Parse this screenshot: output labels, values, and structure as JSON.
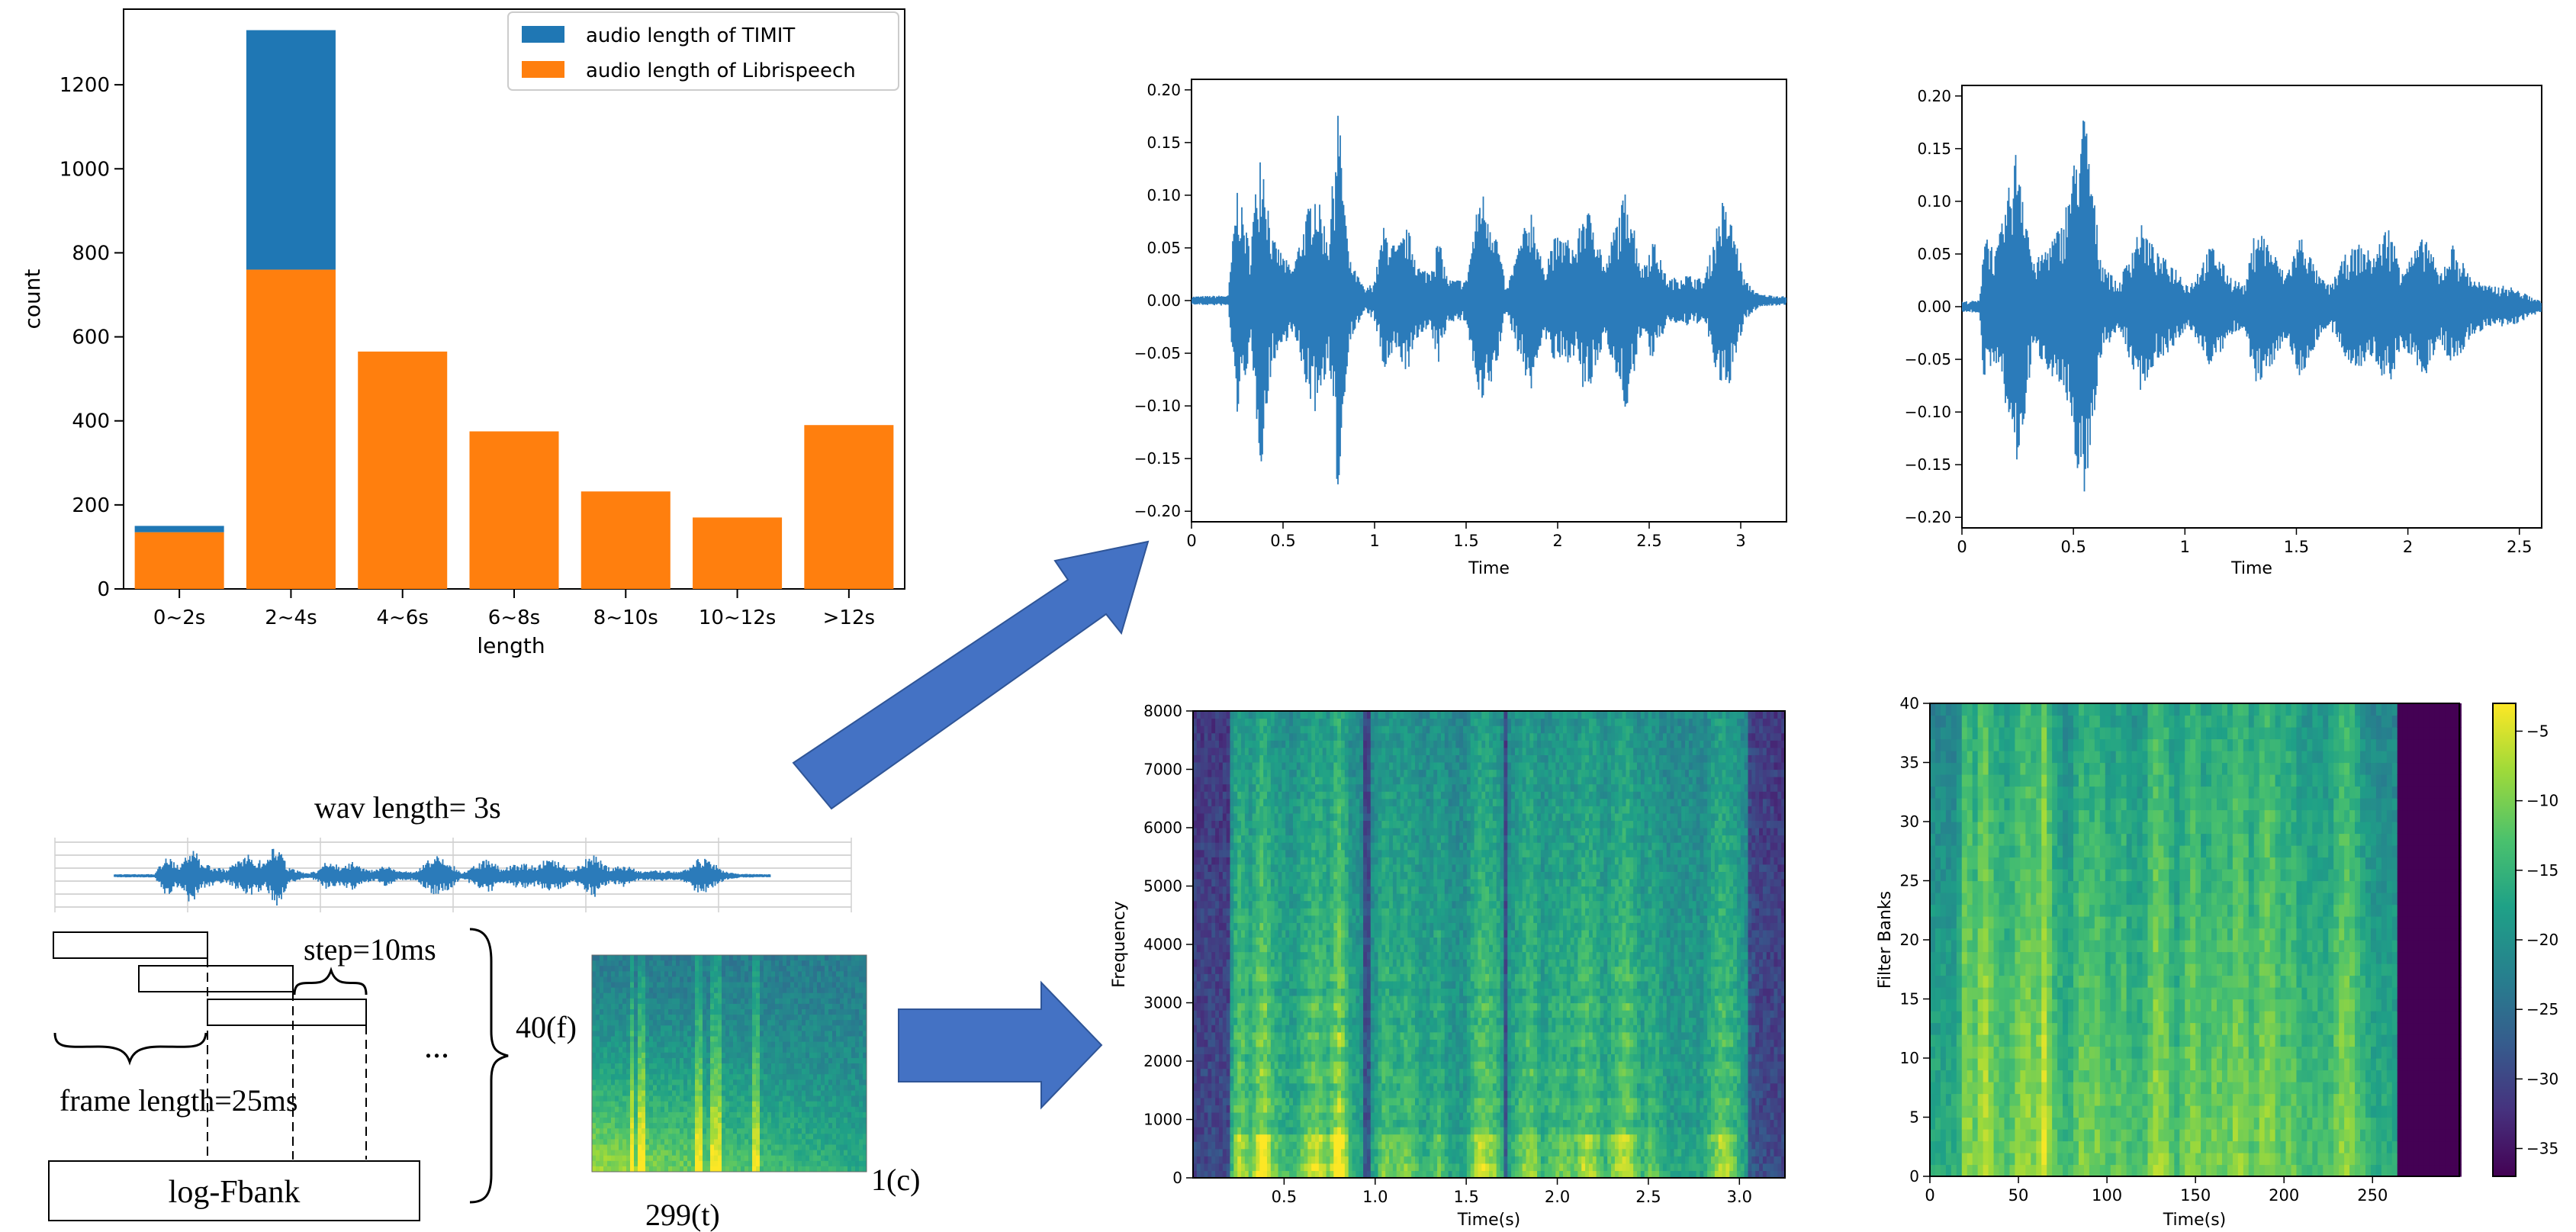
{
  "colors": {
    "timit": "#1f77b4",
    "librispeech": "#ff7f0e",
    "wave": "#2b7bba",
    "arrow": "#4472c4",
    "arrow_edge": "#2f5597"
  },
  "chart_data": [
    {
      "id": "histogram",
      "type": "bar",
      "stacked": true,
      "categories": [
        "0~2s",
        "2~4s",
        "4~6s",
        "6~8s",
        "8~10s",
        "10~12s",
        ">12s"
      ],
      "series": [
        {
          "name": "audio length of Librispeech",
          "values": [
            135,
            760,
            565,
            375,
            232,
            170,
            390
          ]
        },
        {
          "name": "audio length of TIMIT",
          "values": [
            15,
            570,
            0,
            0,
            0,
            0,
            0
          ]
        }
      ],
      "xlabel": "length",
      "ylabel": "count",
      "ylim": [
        0,
        1380
      ],
      "yticks": [
        0,
        200,
        400,
        600,
        800,
        1000,
        1200
      ],
      "legend": [
        "audio length of TIMIT",
        "audio length of Librispeech"
      ],
      "legend_position": "top-right"
    },
    {
      "id": "waveform-a",
      "type": "line",
      "xlabel": "Time",
      "xlim": [
        0,
        3.25
      ],
      "ylim": [
        -0.21,
        0.21
      ],
      "xticks": [
        0,
        0.5,
        1,
        1.5,
        2,
        2.5,
        3
      ],
      "xtick_labels": [
        "0",
        "0.5",
        "1",
        "1.5",
        "2",
        "2.5",
        "3"
      ],
      "yticks": [
        -0.2,
        -0.15,
        -0.1,
        -0.05,
        0,
        0.05,
        0.1,
        0.15,
        0.2
      ],
      "ytick_labels": [
        "−0.20",
        "−0.15",
        "−0.10",
        "−0.05",
        "0.00",
        "0.05",
        "0.10",
        "0.15",
        "0.20"
      ],
      "envelope": [
        [
          0,
          0.004
        ],
        [
          0.2,
          0.005
        ],
        [
          0.25,
          0.11
        ],
        [
          0.32,
          0.05
        ],
        [
          0.38,
          0.16
        ],
        [
          0.44,
          0.06
        ],
        [
          0.55,
          0.03
        ],
        [
          0.67,
          0.11
        ],
        [
          0.75,
          0.06
        ],
        [
          0.8,
          0.19
        ],
        [
          0.86,
          0.04
        ],
        [
          0.95,
          0.01
        ],
        [
          1.0,
          0.02
        ],
        [
          1.05,
          0.07
        ],
        [
          1.12,
          0.05
        ],
        [
          1.18,
          0.07
        ],
        [
          1.25,
          0.03
        ],
        [
          1.3,
          0.03
        ],
        [
          1.35,
          0.06
        ],
        [
          1.4,
          0.02
        ],
        [
          1.5,
          0.02
        ],
        [
          1.58,
          0.11
        ],
        [
          1.66,
          0.07
        ],
        [
          1.72,
          0.01
        ],
        [
          1.8,
          0.06
        ],
        [
          1.86,
          0.09
        ],
        [
          1.92,
          0.03
        ],
        [
          1.98,
          0.06
        ],
        [
          2.05,
          0.06
        ],
        [
          2.1,
          0.05
        ],
        [
          2.14,
          0.09
        ],
        [
          2.2,
          0.08
        ],
        [
          2.26,
          0.03
        ],
        [
          2.31,
          0.07
        ],
        [
          2.38,
          0.11
        ],
        [
          2.46,
          0.03
        ],
        [
          2.52,
          0.06
        ],
        [
          2.6,
          0.02
        ],
        [
          2.7,
          0.025
        ],
        [
          2.8,
          0.02
        ],
        [
          2.9,
          0.095
        ],
        [
          2.96,
          0.07
        ],
        [
          3.02,
          0.02
        ],
        [
          3.1,
          0.006
        ],
        [
          3.25,
          0.004
        ]
      ]
    },
    {
      "id": "waveform-b",
      "type": "line",
      "xlabel": "Time",
      "xlim": [
        0,
        2.6
      ],
      "ylim": [
        -0.21,
        0.21
      ],
      "xticks": [
        0,
        0.5,
        1,
        1.5,
        2,
        2.5
      ],
      "xtick_labels": [
        "0",
        "0.5",
        "1",
        "1.5",
        "2",
        "2.5"
      ],
      "yticks": [
        -0.2,
        -0.15,
        -0.1,
        -0.05,
        0,
        0.05,
        0.1,
        0.15,
        0.2
      ],
      "ytick_labels": [
        "−0.20",
        "−0.15",
        "−0.10",
        "−0.05",
        "0.00",
        "0.05",
        "0.10",
        "0.15",
        "0.20"
      ],
      "envelope": [
        [
          0,
          0.005
        ],
        [
          0.08,
          0.006
        ],
        [
          0.1,
          0.08
        ],
        [
          0.15,
          0.05
        ],
        [
          0.19,
          0.09
        ],
        [
          0.25,
          0.16
        ],
        [
          0.32,
          0.04
        ],
        [
          0.45,
          0.08
        ],
        [
          0.55,
          0.19
        ],
        [
          0.62,
          0.05
        ],
        [
          0.7,
          0.02
        ],
        [
          0.8,
          0.08
        ],
        [
          0.88,
          0.05
        ],
        [
          0.95,
          0.04
        ],
        [
          1.02,
          0.02
        ],
        [
          1.12,
          0.06
        ],
        [
          1.2,
          0.03
        ],
        [
          1.27,
          0.02
        ],
        [
          1.32,
          0.08
        ],
        [
          1.38,
          0.06
        ],
        [
          1.45,
          0.03
        ],
        [
          1.52,
          0.07
        ],
        [
          1.6,
          0.03
        ],
        [
          1.65,
          0.02
        ],
        [
          1.72,
          0.05
        ],
        [
          1.78,
          0.06
        ],
        [
          1.85,
          0.05
        ],
        [
          1.91,
          0.08
        ],
        [
          1.97,
          0.04
        ],
        [
          2.02,
          0.05
        ],
        [
          2.08,
          0.07
        ],
        [
          2.14,
          0.03
        ],
        [
          2.2,
          0.06
        ],
        [
          2.28,
          0.03
        ],
        [
          2.35,
          0.02
        ],
        [
          2.45,
          0.02
        ],
        [
          2.55,
          0.01
        ],
        [
          2.6,
          0.005
        ]
      ]
    },
    {
      "id": "spectrogram",
      "type": "heatmap",
      "xlabel": "Time(s)",
      "ylabel": "Frequency",
      "xlim": [
        0,
        3.25
      ],
      "ylim": [
        0,
        8000
      ],
      "xticks": [
        0.5,
        1,
        1.5,
        2,
        2.5,
        3
      ],
      "xtick_labels": [
        "0.5",
        "1.0",
        "1.5",
        "2.0",
        "2.5",
        "3.0"
      ],
      "yticks": [
        0,
        1000,
        2000,
        3000,
        4000,
        5000,
        6000,
        7000,
        8000
      ],
      "ytick_labels": [
        "0",
        "1000",
        "2000",
        "3000",
        "4000",
        "5000",
        "6000",
        "7000",
        "8000"
      ]
    },
    {
      "id": "filterbank",
      "type": "heatmap",
      "xlabel": "Time(s)",
      "ylabel": "Filter Banks",
      "xlim": [
        0,
        299
      ],
      "ylim": [
        0,
        40
      ],
      "xticks": [
        0,
        50,
        100,
        150,
        200,
        250
      ],
      "xtick_labels": [
        "0",
        "50",
        "100",
        "150",
        "200",
        "250"
      ],
      "yticks": [
        0,
        5,
        10,
        15,
        20,
        25,
        30,
        35,
        40
      ],
      "ytick_labels": [
        "0",
        "5",
        "10",
        "15",
        "20",
        "25",
        "30",
        "35",
        "40"
      ],
      "padding_start": 262,
      "colorbar": {
        "range": [
          -37,
          -3
        ],
        "ticks": [
          -5,
          -10,
          -15,
          -20,
          -25,
          -30,
          -35
        ],
        "tick_labels": [
          "−5",
          "−10",
          "−15",
          "−20",
          "−25",
          "−30",
          "−35"
        ]
      }
    }
  ],
  "diagram": {
    "wav_label": "wav length= 3s",
    "step_label": "step=10ms",
    "frame_label": "frame length=25ms",
    "ellipsis": "...",
    "fbank_label": "log-Fbank",
    "f_dim": "40(f)",
    "t_dim": "299(t)",
    "c_dim": "1(c)"
  }
}
